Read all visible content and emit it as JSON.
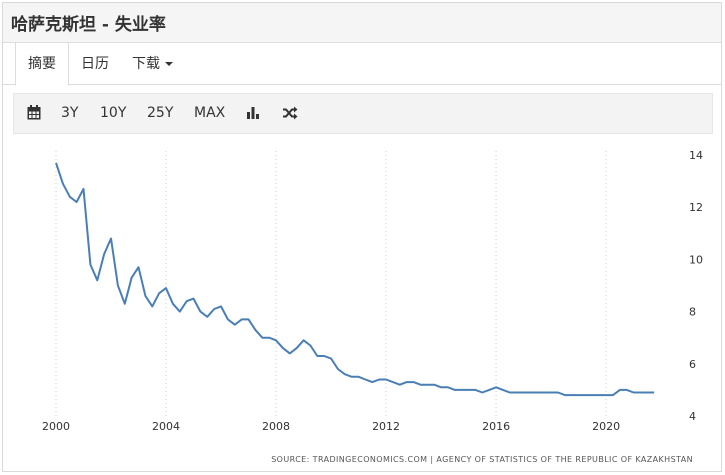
{
  "header": {
    "title": "哈萨克斯坦 - 失业率"
  },
  "tabs": [
    {
      "label": "摘要",
      "active": true
    },
    {
      "label": "日历",
      "active": false
    },
    {
      "label": "下载",
      "active": false,
      "has_dropdown": true
    }
  ],
  "toolbar": {
    "calendar_icon": "calendar-icon",
    "ranges": [
      "3Y",
      "10Y",
      "25Y",
      "MAX"
    ],
    "chart_type_icon": "bar-chart-icon",
    "shuffle_icon": "shuffle-icon"
  },
  "footer": {
    "source": "SOURCE: TRADINGECONOMICS.COM | AGENCY OF STATISTICS OF THE REPUBLIC OF KAZAKHSTAN"
  },
  "colors": {
    "line": "#4a7fb5",
    "grid": "#cfcfcf",
    "text": "#333333"
  },
  "chart_data": {
    "type": "line",
    "title": "",
    "xlabel": "",
    "ylabel": "",
    "xlim": [
      1999.6,
      2022.25
    ],
    "ylim": [
      4,
      14
    ],
    "x_ticks": [
      2000,
      2004,
      2008,
      2012,
      2016,
      2020
    ],
    "y_ticks": [
      4,
      6,
      8,
      10,
      12,
      14
    ],
    "grid": {
      "vertical": true,
      "horizontal": false,
      "style": "dotted"
    },
    "y_axis_position": "right",
    "legend": "none",
    "series": [
      {
        "x": [
          2000.0,
          2000.25,
          2000.5,
          2000.75,
          2001.0,
          2001.25,
          2001.5,
          2001.75,
          2002.0,
          2002.25,
          2002.5,
          2002.75,
          2003.0,
          2003.25,
          2003.5,
          2003.75,
          2004.0,
          2004.25,
          2004.5,
          2004.75,
          2005.0,
          2005.25,
          2005.5,
          2005.75,
          2006.0,
          2006.25,
          2006.5,
          2006.75,
          2007.0,
          2007.25,
          2007.5,
          2007.75,
          2008.0,
          2008.25,
          2008.5,
          2008.75,
          2009.0,
          2009.25,
          2009.5,
          2009.75,
          2010.0,
          2010.25,
          2010.5,
          2010.75,
          2011.0,
          2011.25,
          2011.5,
          2011.75,
          2012.0,
          2012.25,
          2012.5,
          2012.75,
          2013.0,
          2013.25,
          2013.5,
          2013.75,
          2014.0,
          2014.25,
          2014.5,
          2014.75,
          2015.0,
          2015.25,
          2015.5,
          2015.75,
          2016.0,
          2016.25,
          2016.5,
          2016.75,
          2017.0,
          2017.25,
          2017.5,
          2017.75,
          2018.0,
          2018.25,
          2018.5,
          2018.75,
          2019.0,
          2019.25,
          2019.5,
          2019.75,
          2020.0,
          2020.25,
          2020.5,
          2020.75,
          2021.0,
          2021.25,
          2021.5,
          2021.75
        ],
        "y": [
          13.7,
          12.9,
          12.4,
          12.2,
          12.7,
          9.8,
          9.2,
          10.2,
          10.8,
          9.0,
          8.3,
          9.3,
          9.7,
          8.6,
          8.2,
          8.7,
          8.9,
          8.3,
          8.0,
          8.4,
          8.5,
          8.0,
          7.8,
          8.1,
          8.2,
          7.7,
          7.5,
          7.7,
          7.7,
          7.3,
          7.0,
          7.0,
          6.9,
          6.6,
          6.4,
          6.6,
          6.9,
          6.7,
          6.3,
          6.3,
          6.2,
          5.8,
          5.6,
          5.5,
          5.5,
          5.4,
          5.3,
          5.4,
          5.4,
          5.3,
          5.2,
          5.3,
          5.3,
          5.2,
          5.2,
          5.2,
          5.1,
          5.1,
          5.0,
          5.0,
          5.0,
          5.0,
          4.9,
          5.0,
          5.1,
          5.0,
          4.9,
          4.9,
          4.9,
          4.9,
          4.9,
          4.9,
          4.9,
          4.9,
          4.8,
          4.8,
          4.8,
          4.8,
          4.8,
          4.8,
          4.8,
          4.8,
          5.0,
          5.0,
          4.9,
          4.9,
          4.9,
          4.9
        ]
      }
    ]
  }
}
